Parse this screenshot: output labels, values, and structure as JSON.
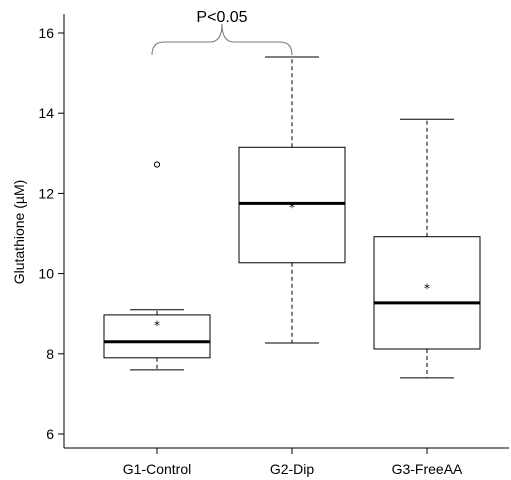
{
  "chart_data": {
    "type": "boxplot",
    "title": "",
    "xlabel": "",
    "ylabel": "Glutathione (µM)",
    "ylim": [
      5.6,
      16.4
    ],
    "yticks": [
      6,
      8,
      10,
      12,
      14,
      16
    ],
    "ytick_labels": [
      "6",
      "8",
      "10",
      "12",
      "14",
      "16"
    ],
    "grid": false,
    "categories": [
      "G1-Control",
      "G2-Dip",
      "G3-FreeAA"
    ],
    "boxes": [
      {
        "name": "G1-Control",
        "whisker_low": 7.6,
        "q1": 7.9,
        "median": 8.3,
        "q3": 8.97,
        "whisker_high": 9.1,
        "mean": 8.78,
        "outliers": [
          12.72
        ]
      },
      {
        "name": "G2-Dip",
        "whisker_low": 8.27,
        "q1": 10.27,
        "median": 11.75,
        "q3": 13.15,
        "whisker_high": 15.4,
        "mean": 11.72,
        "outliers": []
      },
      {
        "name": "G3-FreeAA",
        "whisker_low": 7.4,
        "q1": 8.12,
        "median": 9.27,
        "q3": 10.92,
        "whisker_high": 13.85,
        "mean": 9.7,
        "outliers": []
      }
    ],
    "mean_marker": "*",
    "annotations": [
      {
        "text": "P<0.05",
        "from_category": 0,
        "to_category": 1
      }
    ]
  }
}
